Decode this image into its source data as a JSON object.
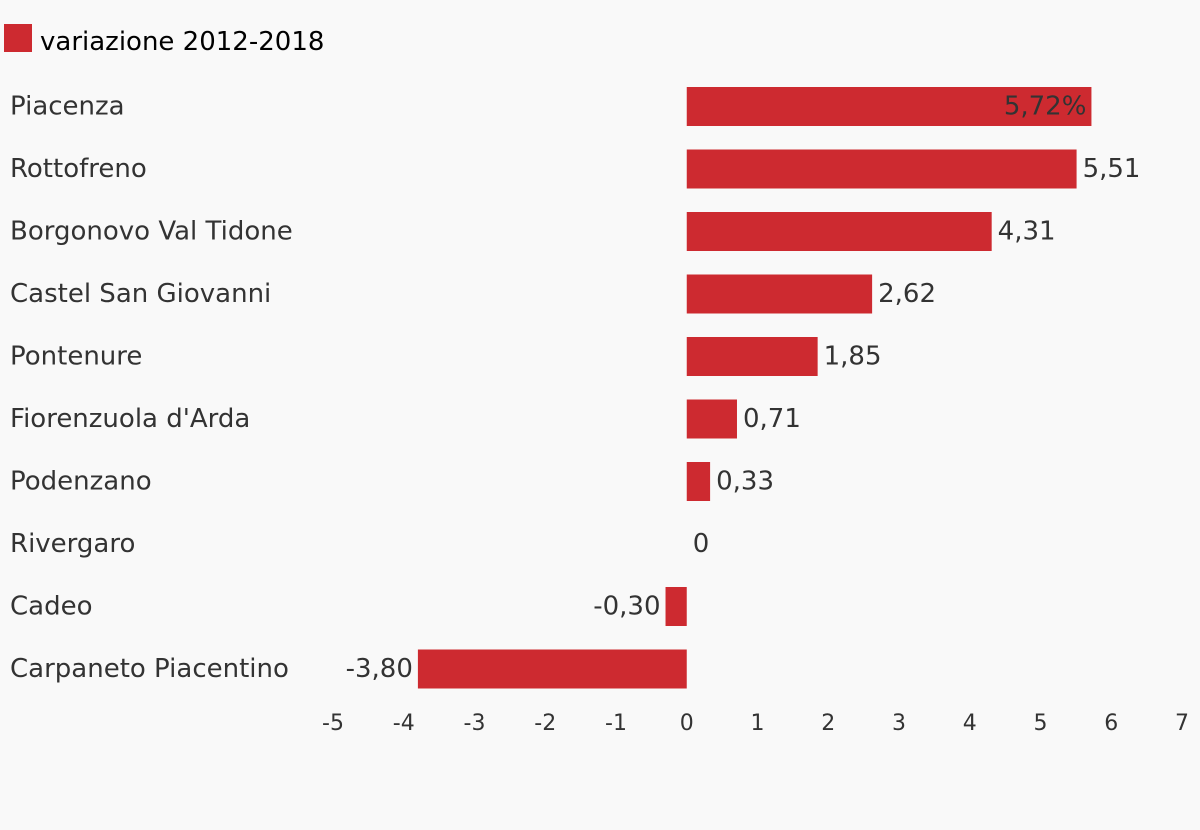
{
  "chart_data": {
    "type": "bar",
    "orientation": "horizontal",
    "legend": {
      "position": "top-left",
      "entries": [
        {
          "name": "variazione 2012-2018",
          "color": "#cd2a30"
        }
      ]
    },
    "categories": [
      "Piacenza",
      "Rottofreno",
      "Borgonovo Val Tidone",
      "Castel San Giovanni",
      "Pontenure",
      "Fiorenzuola d'Arda",
      "Podenzano",
      "Rivergaro",
      "Cadeo",
      "Carpaneto Piacentino"
    ],
    "series": [
      {
        "name": "variazione 2012-2018",
        "color": "#cd2a30",
        "values": [
          5.72,
          5.51,
          4.31,
          2.62,
          1.85,
          0.71,
          0.33,
          0,
          -0.3,
          -3.8
        ]
      }
    ],
    "value_labels": [
      "5,72%",
      "5,51",
      "4,31",
      "2,62",
      "1,85",
      "0,71",
      "0,33",
      "0",
      "-0,30",
      "-3,80"
    ],
    "xticks": [
      "-5",
      "-4",
      "-3",
      "-2",
      "-1",
      "0",
      "1",
      "2",
      "3",
      "4",
      "5",
      "6",
      "7"
    ],
    "xlim": [
      -5,
      7
    ],
    "grid": false,
    "title": "",
    "xlabel": "",
    "ylabel": ""
  }
}
